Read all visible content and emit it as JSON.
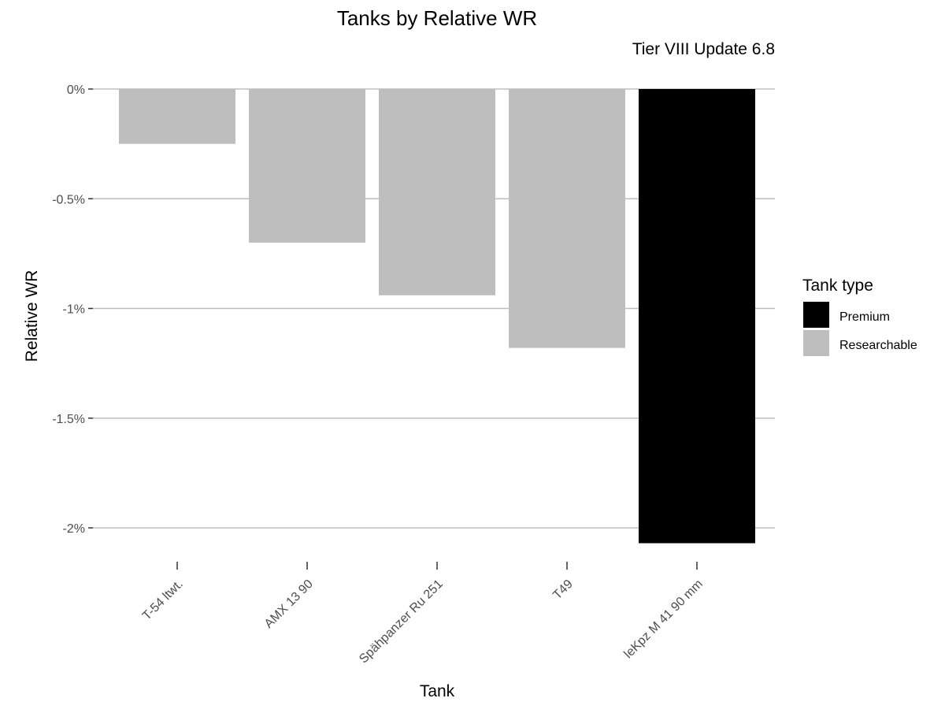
{
  "chart_data": {
    "type": "bar",
    "title": "Tanks by Relative WR",
    "subtitle": "Tier VIII Update 6.8",
    "xlabel": "Tank",
    "ylabel": "Relative WR",
    "categories": [
      "T-54 ltwt.",
      "AMX 13 90",
      "Spähpanzer Ru 251",
      "T49",
      "leKpz M 41 90 mm"
    ],
    "values": [
      -0.25,
      -0.7,
      -0.94,
      -1.18,
      -2.07
    ],
    "types": [
      "Researchable",
      "Researchable",
      "Researchable",
      "Researchable",
      "Premium"
    ],
    "y_ticks": [
      0,
      -0.5,
      -1,
      -1.5,
      -2
    ],
    "y_tick_labels": [
      "0%",
      "-0.5%",
      "-1%",
      "-1.5%",
      "-2%"
    ],
    "ylim": [
      -2.15,
      0
    ],
    "grid": true,
    "legend": {
      "title": "Tank type",
      "position": "right",
      "entries": [
        {
          "label": "Premium",
          "color": "#000000"
        },
        {
          "label": "Researchable",
          "color": "#bebebe"
        }
      ]
    },
    "colors": {
      "Premium": "#000000",
      "Researchable": "#bebebe"
    }
  }
}
